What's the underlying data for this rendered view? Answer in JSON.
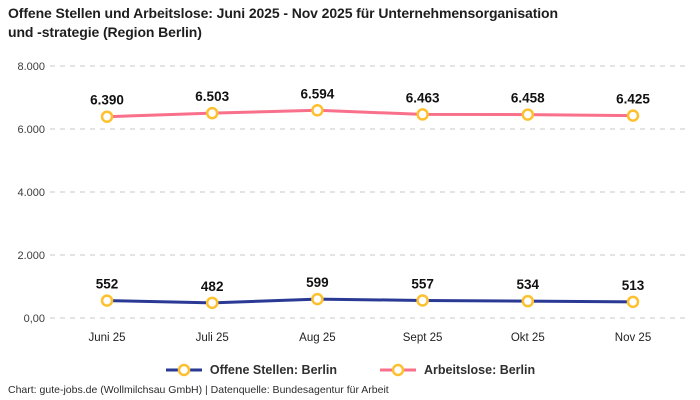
{
  "header": {
    "lines": [
      "Offene Stellen und Arbeitslose: Juni 2025 - Nov 2025 für Unternehmensorganisation",
      "und -strategie (Region Berlin)"
    ]
  },
  "chart_data": {
    "type": "line",
    "title": "Offene Stellen und Arbeitslose: Juni 2025 - Nov 2025 für Unternehmensorganisation und -strategie (Region Berlin)",
    "categories": [
      "Juni 25",
      "Juli 25",
      "Aug 25",
      "Sept 25",
      "Okt 25",
      "Nov 25"
    ],
    "series": [
      {
        "name": "Offene Stellen: Berlin",
        "color": "#2a3a94",
        "values": [
          552,
          482,
          599,
          557,
          534,
          513
        ],
        "labels": [
          "552",
          "482",
          "599",
          "557",
          "534",
          "513"
        ]
      },
      {
        "name": "Arbeitslose: Berlin",
        "color": "#f8708a",
        "values": [
          6390,
          6503,
          6594,
          6463,
          6458,
          6425
        ],
        "labels": [
          "6.390",
          "6.503",
          "6.594",
          "6.463",
          "6.458",
          "6.425"
        ]
      }
    ],
    "ylim": [
      0,
      8000
    ],
    "yticks": [
      0,
      2000,
      4000,
      6000,
      8000
    ],
    "ytick_labels": [
      "0,00",
      "2.000",
      "4.000",
      "6.000",
      "8.000"
    ],
    "xlabel": "",
    "ylabel": "",
    "grid": "horizontal-dashed",
    "grid_color": "#c9c9c9",
    "marker": {
      "fill": "#ffffff",
      "stroke": "#fdc02f"
    },
    "axis_text_color": "#3c3c3c",
    "data_label_color": "#111111",
    "legend_position": "bottom"
  },
  "footer": {
    "text": "Chart: gute-jobs.de (Wollmilchsau GmbH) | Datenquelle: Bundesagentur für Arbeit"
  }
}
